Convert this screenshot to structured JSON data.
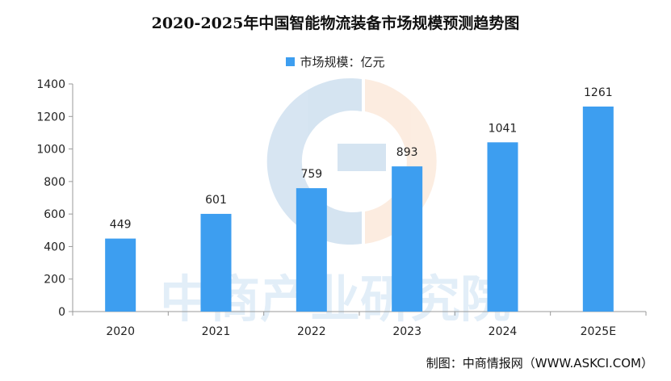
{
  "chart_data": {
    "type": "bar",
    "title": "2020-2025年中国智能物流装备市场规模预测趋势图",
    "legend": [
      {
        "name": "市场规模：亿元",
        "color": "#3d9ef0"
      }
    ],
    "legend_position": "top",
    "categories": [
      "2020",
      "2021",
      "2022",
      "2023",
      "2024",
      "2025E"
    ],
    "series": [
      {
        "name": "市场规模：亿元",
        "values": [
          449,
          601,
          759,
          893,
          1041,
          1261
        ],
        "color": "#3d9ef0"
      }
    ],
    "data_labels": [
      "449",
      "601",
      "759",
      "893",
      "1041",
      "1261"
    ],
    "y_ticks": [
      "0",
      "200",
      "400",
      "600",
      "800",
      "1000",
      "1200",
      "1400"
    ],
    "ylim": [
      0,
      1400
    ],
    "grid": false
  },
  "watermark": {
    "text": "中商产业研究院"
  },
  "source": "制图：中商情报网（WWW.ASKCI.COM）"
}
